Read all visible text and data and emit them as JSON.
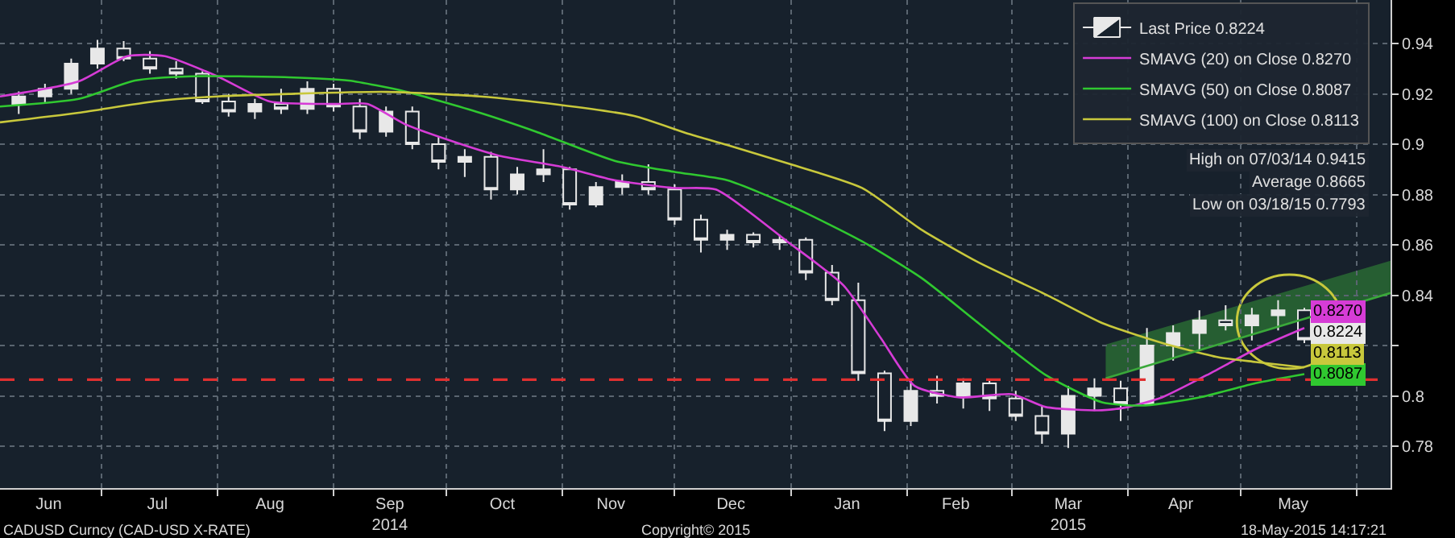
{
  "chart_data": {
    "type": "candlestick",
    "xlim": [
      "2014-06-04",
      "2015-06-10"
    ],
    "xticks": [
      {
        "value": "2014-06-17",
        "label": "Jun"
      },
      {
        "value": "2014-07-01",
        "label": null
      },
      {
        "value": "2014-07-16",
        "label": "Jul"
      },
      {
        "value": "2014-08-01",
        "label": null
      },
      {
        "value": "2014-08-15",
        "label": "Aug"
      },
      {
        "value": "2014-09-01",
        "label": null
      },
      {
        "value": "2014-09-16",
        "label": "Sep\n2014"
      },
      {
        "value": "2014-10-01",
        "label": null
      },
      {
        "value": "2014-10-16",
        "label": "Oct"
      },
      {
        "value": "2014-11-01",
        "label": null
      },
      {
        "value": "2014-11-14",
        "label": "Nov"
      },
      {
        "value": "2014-12-01",
        "label": null
      },
      {
        "value": "2014-12-16",
        "label": "Dec"
      },
      {
        "value": "2015-01-01",
        "label": null
      },
      {
        "value": "2015-01-16",
        "label": "Jan"
      },
      {
        "value": "2015-02-01",
        "label": null
      },
      {
        "value": "2015-02-14",
        "label": "Feb"
      },
      {
        "value": "2015-03-01",
        "label": null
      },
      {
        "value": "2015-03-16",
        "label": "Mar\n2015"
      },
      {
        "value": "2015-04-01",
        "label": null
      },
      {
        "value": "2015-04-15",
        "label": "Apr"
      },
      {
        "value": "2015-05-01",
        "label": null
      },
      {
        "value": "2015-05-15",
        "label": "May"
      },
      {
        "value": "2015-06-01",
        "label": null
      }
    ],
    "ylim": [
      0.7634,
      0.9573
    ],
    "yticks": [
      0.78,
      0.8,
      {
        "value": 0.82,
        "label": null
      },
      0.84,
      0.86,
      0.88,
      0.9,
      0.92,
      0.94
    ],
    "grid": true,
    "legend": "top right",
    "series": [
      {
        "name": "Last Price 0.8224",
        "color": "#e8e8e8",
        "x": [
          "2014-06-09",
          "2014-06-16",
          "2014-06-23",
          "2014-06-30",
          "2014-07-07",
          "2014-07-14",
          "2014-07-21",
          "2014-07-28",
          "2014-08-04",
          "2014-08-11",
          "2014-08-18",
          "2014-08-25",
          "2014-09-01",
          "2014-09-08",
          "2014-09-15",
          "2014-09-22",
          "2014-09-29",
          "2014-10-06",
          "2014-10-13",
          "2014-10-20",
          "2014-10-27",
          "2014-11-03",
          "2014-11-10",
          "2014-11-17",
          "2014-11-24",
          "2014-12-01",
          "2014-12-08",
          "2014-12-15",
          "2014-12-22",
          "2014-12-29",
          "2015-01-05",
          "2015-01-12",
          "2015-01-19",
          "2015-01-26",
          "2015-02-02",
          "2015-02-09",
          "2015-02-16",
          "2015-02-23",
          "2015-03-02",
          "2015-03-09",
          "2015-03-16",
          "2015-03-23",
          "2015-03-30",
          "2015-04-06",
          "2015-04-13",
          "2015-04-20",
          "2015-04-27",
          "2015-05-04",
          "2015-05-11",
          "2015-05-18"
        ],
        "ohlc": [
          [
            0.916,
            0.921,
            0.912,
            0.919
          ],
          [
            0.919,
            0.924,
            0.916,
            0.922
          ],
          [
            0.922,
            0.934,
            0.92,
            0.932
          ],
          [
            0.932,
            0.9415,
            0.93,
            0.938
          ],
          [
            0.938,
            0.941,
            0.933,
            0.934
          ],
          [
            0.934,
            0.937,
            0.928,
            0.93
          ],
          [
            0.93,
            0.933,
            0.926,
            0.928
          ],
          [
            0.928,
            0.929,
            0.916,
            0.917
          ],
          [
            0.917,
            0.92,
            0.911,
            0.913
          ],
          [
            0.913,
            0.918,
            0.91,
            0.916
          ],
          [
            0.916,
            0.922,
            0.912,
            0.914
          ],
          [
            0.914,
            0.925,
            0.912,
            0.922
          ],
          [
            0.922,
            0.924,
            0.913,
            0.915
          ],
          [
            0.915,
            0.918,
            0.902,
            0.905
          ],
          [
            0.905,
            0.915,
            0.903,
            0.913
          ],
          [
            0.913,
            0.915,
            0.898,
            0.9
          ],
          [
            0.9,
            0.903,
            0.89,
            0.893
          ],
          [
            0.893,
            0.898,
            0.887,
            0.895
          ],
          [
            0.895,
            0.897,
            0.878,
            0.882
          ],
          [
            0.882,
            0.891,
            0.88,
            0.888
          ],
          [
            0.888,
            0.898,
            0.885,
            0.89
          ],
          [
            0.89,
            0.891,
            0.874,
            0.876
          ],
          [
            0.876,
            0.885,
            0.875,
            0.883
          ],
          [
            0.883,
            0.888,
            0.88,
            0.885
          ],
          [
            0.885,
            0.892,
            0.88,
            0.882
          ],
          [
            0.882,
            0.884,
            0.868,
            0.87
          ],
          [
            0.87,
            0.872,
            0.857,
            0.862
          ],
          [
            0.862,
            0.866,
            0.858,
            0.864
          ],
          [
            0.864,
            0.865,
            0.859,
            0.861
          ],
          [
            0.861,
            0.864,
            0.858,
            0.862
          ],
          [
            0.862,
            0.863,
            0.846,
            0.849
          ],
          [
            0.849,
            0.852,
            0.836,
            0.838
          ],
          [
            0.838,
            0.845,
            0.806,
            0.809
          ],
          [
            0.809,
            0.81,
            0.786,
            0.79
          ],
          [
            0.79,
            0.806,
            0.788,
            0.802
          ],
          [
            0.802,
            0.808,
            0.797,
            0.8
          ],
          [
            0.8,
            0.807,
            0.795,
            0.805
          ],
          [
            0.805,
            0.806,
            0.794,
            0.799
          ],
          [
            0.799,
            0.802,
            0.79,
            0.792
          ],
          [
            0.792,
            0.796,
            0.781,
            0.785
          ],
          [
            0.785,
            0.804,
            0.7793,
            0.8
          ],
          [
            0.8,
            0.807,
            0.794,
            0.803
          ],
          [
            0.803,
            0.806,
            0.79,
            0.797
          ],
          [
            0.797,
            0.827,
            0.796,
            0.82
          ],
          [
            0.82,
            0.828,
            0.814,
            0.825
          ],
          [
            0.825,
            0.834,
            0.818,
            0.83
          ],
          [
            0.83,
            0.836,
            0.826,
            0.828
          ],
          [
            0.828,
            0.835,
            0.822,
            0.832
          ],
          [
            0.832,
            0.838,
            0.826,
            0.834
          ],
          [
            0.834,
            0.835,
            0.821,
            0.8224
          ]
        ],
        "value_labels": [
          null,
          null,
          null,
          null,
          null,
          null,
          null,
          null,
          null,
          null,
          null,
          null,
          null,
          null,
          null,
          null,
          null,
          null,
          null,
          null,
          null,
          null,
          null,
          null,
          null,
          null,
          null,
          null,
          null,
          null,
          null,
          null,
          null,
          null,
          null,
          null,
          null,
          null,
          null,
          null,
          null,
          null,
          null,
          null,
          null,
          null,
          null,
          null,
          null,
          "0.8224"
        ]
      },
      {
        "type": "line",
        "name": "SMAVG (20) on Close 0.8270",
        "color": "#d63cd6",
        "x": [
          "2014-06-04",
          "2014-06-25",
          "2014-07-08",
          "2014-07-18",
          "2014-08-01",
          "2014-08-15",
          "2014-09-01",
          "2014-09-10",
          "2014-09-20",
          "2014-10-01",
          "2014-10-15",
          "2014-11-01",
          "2014-11-15",
          "2014-12-01",
          "2014-12-12",
          "2014-12-31",
          "2015-01-15",
          "2015-01-25",
          "2015-02-03",
          "2015-02-15",
          "2015-03-01",
          "2015-03-10",
          "2015-03-25",
          "2015-04-01",
          "2015-04-10",
          "2015-04-22",
          "2015-05-05",
          "2015-05-18"
        ],
        "values": [
          0.919,
          0.925,
          0.935,
          0.935,
          0.927,
          0.917,
          0.916,
          0.916,
          0.908,
          0.902,
          0.8955,
          0.891,
          0.8857,
          0.8826,
          0.882,
          0.8614,
          0.844,
          0.823,
          0.804,
          0.7994,
          0.8007,
          0.7956,
          0.7943,
          0.7956,
          0.7994,
          0.8083,
          0.8186,
          0.827
        ],
        "value_labels": [
          null,
          null,
          null,
          null,
          null,
          null,
          null,
          null,
          null,
          null,
          null,
          null,
          null,
          null,
          null,
          null,
          null,
          null,
          null,
          null,
          null,
          null,
          null,
          null,
          null,
          null,
          null,
          "0.8270"
        ]
      },
      {
        "type": "line",
        "name": "SMAVG (50) on Close 0.8087",
        "color": "#30c830",
        "x": [
          "2014-06-04",
          "2014-06-25",
          "2014-07-10",
          "2014-07-25",
          "2014-08-20",
          "2014-09-05",
          "2014-09-20",
          "2014-10-10",
          "2014-10-25",
          "2014-11-15",
          "2014-12-01",
          "2014-12-15",
          "2015-01-01",
          "2015-01-20",
          "2015-02-05",
          "2015-02-20",
          "2015-03-10",
          "2015-03-25",
          "2015-04-05",
          "2015-04-20",
          "2015-05-05",
          "2015-05-18"
        ],
        "values": [
          0.915,
          0.918,
          0.9253,
          0.927,
          0.9266,
          0.9253,
          0.921,
          0.9125,
          0.905,
          0.8934,
          0.889,
          0.8857,
          0.8755,
          0.8614,
          0.8467,
          0.829,
          0.8083,
          0.7975,
          0.7962,
          0.7994,
          0.8051,
          0.8087
        ],
        "value_labels": [
          null,
          null,
          null,
          null,
          null,
          null,
          null,
          null,
          null,
          null,
          null,
          null,
          null,
          null,
          null,
          null,
          null,
          null,
          null,
          null,
          null,
          "0.8087"
        ]
      },
      {
        "type": "line",
        "name": "SMAVG (100) on Close 0.8113",
        "color": "#c8c83c",
        "x": [
          "2014-06-04",
          "2014-06-25",
          "2014-07-15",
          "2014-08-01",
          "2014-08-20",
          "2014-09-15",
          "2014-10-10",
          "2014-10-31",
          "2014-11-20",
          "2014-12-05",
          "2014-12-15",
          "2015-01-01",
          "2015-01-20",
          "2015-02-05",
          "2015-02-20",
          "2015-03-10",
          "2015-03-25",
          "2015-04-10",
          "2015-04-25",
          "2015-05-05",
          "2015-05-18"
        ],
        "values": [
          0.9087,
          0.9125,
          0.917,
          0.919,
          0.92,
          0.9208,
          0.919,
          0.9157,
          0.9113,
          0.904,
          0.8997,
          0.892,
          0.8826,
          0.8659,
          0.8531,
          0.8403,
          0.829,
          0.8211,
          0.8154,
          0.8135,
          0.8113
        ],
        "value_labels": [
          null,
          null,
          null,
          null,
          null,
          null,
          null,
          null,
          null,
          null,
          null,
          null,
          null,
          null,
          null,
          null,
          null,
          null,
          null,
          null,
          "0.8113"
        ]
      },
      {
        "type": "line",
        "color": "#3aa83a",
        "x": [
          "2015-03-26",
          "2015-06-10"
        ],
        "values": [
          0.807,
          0.8409
        ],
        "lower": [
          0.807,
          0.8409
        ],
        "upper": [
          0.8204,
          0.8537
        ]
      }
    ],
    "ref_lines": [
      {
        "axis": "y",
        "value": 0.8065,
        "color": "#e03030",
        "line_style": "dashed"
      }
    ],
    "annotations": [
      "CADUSD Curncy (CAD-USD X-RATE)",
      "Copyright© 2015",
      "18-May-2015 14:17:21",
      "High on 07/03/14 0.9415",
      "Average 0.8665",
      "Low on 03/18/15 0.7793"
    ]
  }
}
